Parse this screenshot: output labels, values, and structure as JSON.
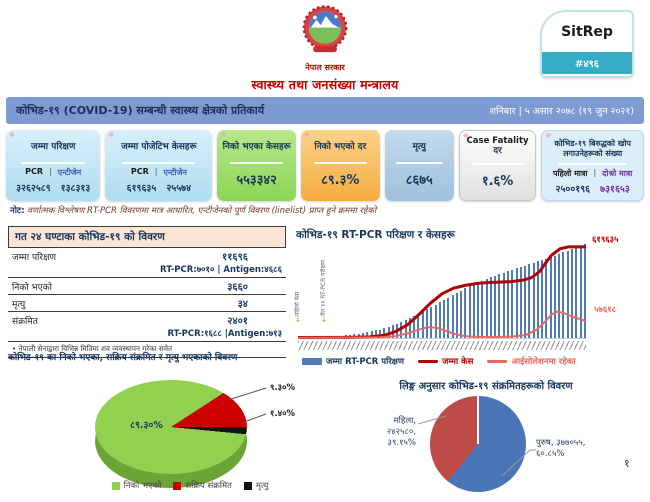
{
  "page": {
    "number": "१"
  },
  "header": {
    "government": "नेपाल सरकार",
    "ministry": "स्वास्थ्य तथा जनसंख्या मन्त्रालय",
    "sitrep": {
      "label": "SitRep",
      "number": "#४९६",
      "accent": "#35ADC4"
    },
    "title_bar": {
      "title": "कोभिड-१९ (COVID-19) सम्बन्धी स्वास्थ्य क्षेत्रको प्रतिकार्य",
      "date": "शनिबार | ५ असार २०७८ (१९ जुन २०२१)",
      "bg": "#7D9BD2"
    }
  },
  "stat_cards": [
    {
      "title": "जम्मा परिक्षण",
      "col1": "PCR",
      "sep": "|",
      "col2": "एन्टीजेन",
      "val1": "३२६२५८९",
      "val2": "१३८३१३",
      "bg": "#BCE0F2"
    },
    {
      "title": "जम्मा पोजेटिभ केसहरू",
      "col1": "PCR",
      "sep": "|",
      "col2": "एन्टीजेन",
      "val1": "६१९६३५",
      "val2": "२५५७४",
      "bg": "#BCE0F2"
    },
    {
      "title": "निको भएका केसहरू",
      "value": "५५३३४२",
      "bg": "#9ADB66"
    },
    {
      "title": "निको भएको दर",
      "value": "८९.३%",
      "bg": "#F6B95A"
    },
    {
      "title": "मृत्यु",
      "value": "८६७५",
      "bg": "#A9C6DE"
    },
    {
      "title_en": "Case Fatality",
      "title_np": "दर",
      "value": "१.६%",
      "bg": "#F2F2F2"
    },
    {
      "title": "कोभिड-१९ बिरुद्धको खोप लगाउनेहरूको संख्या",
      "col1": "पहिलो मात्रा",
      "sep": "|",
      "col2": "दोश्रो मात्रा",
      "val1": "२५००१९६",
      "val2": "७३१६५३",
      "bg": "#DCEEF9"
    }
  ],
  "note": {
    "prefix": "नोट:",
    "body": " वर्णात्मक विश्लेषण RT-PCR विवरणमा मात्र आधारित, एन्टीजेनको पूर्ण विवरण (linelist) प्राप्त हुने क्रममा रहेको"
  },
  "daily_table": {
    "title": "गत २४ घण्टाका कोभिड-१९ को विवरण",
    "rows": [
      {
        "label": "जम्मा परिक्षण",
        "value": "११६९६",
        "sub": "RT-PCR:७०१०  |  Antigen:४६८६"
      },
      {
        "label": "निको भएको",
        "value": "३६६०"
      },
      {
        "label": "मृत्यु",
        "value": "३४"
      },
      {
        "label": "संक्रमित",
        "value": "२४०१",
        "sub": "RT-PCR:१६८८  |Antigen:७१३"
      }
    ],
    "footnote": "•  नेपाली सेनाद्वारा विभिन्न मितिमा शव व्यवस्थापन गरेका समेत"
  },
  "chart_data": [
    {
      "type": "bar",
      "id": "rtpcr-trend",
      "title": "कोभिड-१९ RT-PCR परिक्षण र केसहरू",
      "annotations": [
        {
          "label": "पहिलो केस"
        },
        {
          "label": "चैत ११ RT-PCR परीक्षण सुरु"
        }
      ],
      "end_labels": {
        "cases": "६१९६३५",
        "isolation": "५७६१८"
      },
      "legend": [
        {
          "label": "जम्मा RT-PCR परिक्षण",
          "type": "bar",
          "color": "#4F7CB5"
        },
        {
          "label": "जम्मा केस",
          "type": "line",
          "color": "#B00000"
        },
        {
          "label": "आईसोलेशनमा रहेका",
          "type": "line",
          "color": "#E8695F"
        }
      ],
      "bars_pct": [
        0.3,
        0.4,
        0.5,
        0.6,
        0.8,
        1,
        1.2,
        1.5,
        1.8,
        2.2,
        2.6,
        3,
        3.5,
        4,
        4.6,
        5.2,
        6,
        7,
        8,
        9,
        10.5,
        12,
        13.5,
        15,
        17,
        19,
        21,
        23,
        25.5,
        28,
        30.5,
        33,
        35.5,
        38,
        40.5,
        43,
        45.5,
        48,
        50.5,
        53,
        55,
        57,
        59,
        61,
        63,
        65,
        66.5,
        68,
        69.5,
        71,
        72.5,
        74,
        75.5,
        77,
        78.5,
        80,
        81.5,
        83,
        84.5,
        86,
        87.5,
        89,
        91,
        93,
        95,
        96.5,
        98,
        100
      ],
      "series": [
        {
          "name": "जम्मा केस",
          "color": "#B00000",
          "points": [
            [
              0,
              0.5
            ],
            [
              18,
              0.7
            ],
            [
              25,
              1.2
            ],
            [
              30,
              3
            ],
            [
              34,
              7
            ],
            [
              38,
              14
            ],
            [
              42,
              25
            ],
            [
              46,
              37
            ],
            [
              50,
              47
            ],
            [
              54,
              53
            ],
            [
              58,
              56
            ],
            [
              62,
              58
            ],
            [
              66,
              59
            ],
            [
              70,
              59.5
            ],
            [
              74,
              60
            ],
            [
              78,
              61.5
            ],
            [
              81,
              64
            ],
            [
              84,
              71
            ],
            [
              86,
              80
            ],
            [
              88,
              88
            ],
            [
              91,
              95
            ],
            [
              94,
              97
            ],
            [
              100,
              97
            ]
          ]
        },
        {
          "name": "आईसोलेशनमा रहेका",
          "color": "#E8695F",
          "points": [
            [
              0,
              0.3
            ],
            [
              28,
              0.6
            ],
            [
              34,
              2
            ],
            [
              38,
              5
            ],
            [
              42,
              9
            ],
            [
              45,
              11.5
            ],
            [
              48,
              11
            ],
            [
              51,
              8
            ],
            [
              54,
              4.5
            ],
            [
              58,
              2
            ],
            [
              62,
              1.2
            ],
            [
              68,
              1
            ],
            [
              74,
              1.5
            ],
            [
              79,
              3
            ],
            [
              83,
              9
            ],
            [
              86,
              18
            ],
            [
              88,
              25
            ],
            [
              90,
              28
            ],
            [
              92,
              27
            ],
            [
              95,
              23
            ],
            [
              100,
              18
            ]
          ]
        }
      ],
      "ylim": [
        0,
        100
      ],
      "grid": false,
      "legend_position": "bottom"
    },
    {
      "type": "pie",
      "id": "outcome-pie",
      "title": "कोभिड-१९ का निको भएका, सक्रिय संक्रमित र मृत्यु भएकाको विवरण",
      "start_angle_deg": 57,
      "slices": [
        {
          "label": "सक्रिय संक्रमित",
          "value": 9.3,
          "display": "९.३०%",
          "color": "#CC0000"
        },
        {
          "label": "मृत्यु",
          "value": 1.4,
          "display": "१.४०%",
          "color": "#141414"
        },
        {
          "label": "निको भएको",
          "value": 89.3,
          "display": "८९.३०%",
          "color": "#92D050"
        }
      ],
      "legend": [
        {
          "label": "निको भएको",
          "color": "#92D050"
        },
        {
          "label": "सक्रिय संक्रमित",
          "color": "#CC0000"
        },
        {
          "label": "मृत्यु",
          "color": "#141414"
        }
      ]
    },
    {
      "type": "pie",
      "id": "gender-pie",
      "title": "लिङ्ग अनुसार कोभिड-१९ संक्रमितहरूको विवरण",
      "start_angle_deg": 0,
      "slices": [
        {
          "label": "पुरुष",
          "value": 60.85,
          "color": "#4A76B8",
          "lines": [
            "पुरुष, ३७७०५५,",
            "६०.८५%"
          ]
        },
        {
          "label": "महिला",
          "value": 39.15,
          "color": "#BE4B48",
          "lines": [
            "महिला,",
            "२४२५८०,",
            "३९.१५%"
          ]
        }
      ]
    }
  ]
}
